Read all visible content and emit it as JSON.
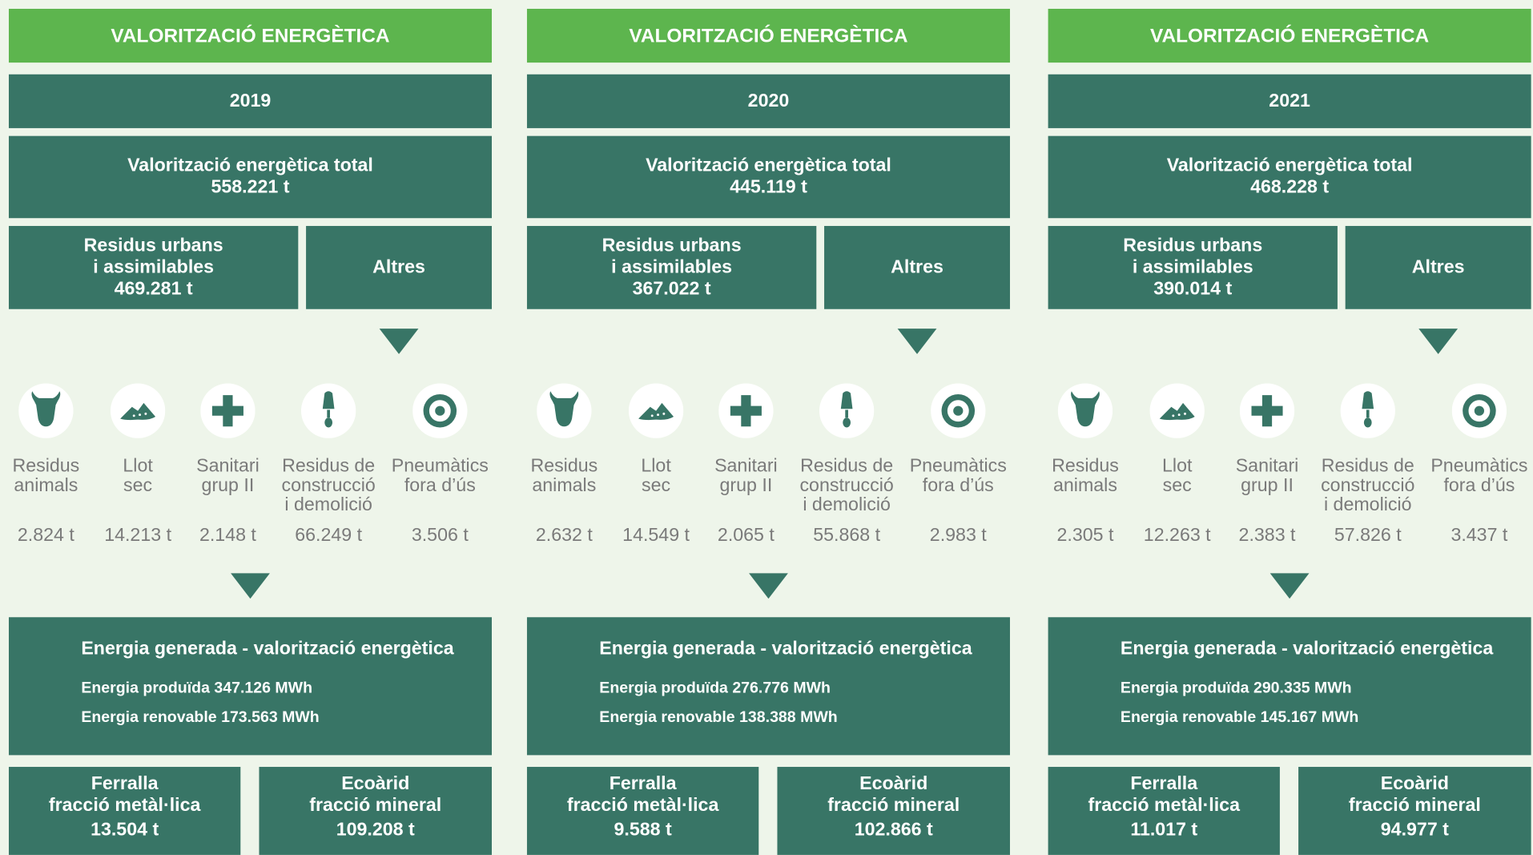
{
  "columns": [
    {
      "header": "VALORITZACIÓ ENERGÈTICA",
      "year": "2019",
      "total_label": "Valorització energètica total",
      "total_value": "558.221 t",
      "urban_label": [
        "Residus urbans",
        "i assimilables"
      ],
      "urban_value": "469.281 t",
      "others": "Altres",
      "items": [
        {
          "label": [
            "Residus",
            "animals"
          ],
          "value": "2.824 t"
        },
        {
          "label": [
            "Llot",
            "sec"
          ],
          "value": "14.213 t"
        },
        {
          "label": [
            "Sanitari",
            "grup II"
          ],
          "value": "2.148 t"
        },
        {
          "label": [
            "Residus de",
            "construcció",
            "i demolició"
          ],
          "value": "66.249 t"
        },
        {
          "label": [
            "Pneumàtics",
            "fora d’ús"
          ],
          "value": "3.506 t"
        }
      ],
      "energy_title": "Energia generada - valorització energètica",
      "energy_produced": "Energia produïda 347.126 MWh",
      "energy_renewable": "Energia renovable 173.563 MWh",
      "ferralla_label": [
        "Ferralla",
        "fracció metàl·lica"
      ],
      "ferralla_value": "13.504 t",
      "ecoarid_label": [
        "Ecoàrid",
        "fracció mineral"
      ],
      "ecoarid_value": "109.208 t"
    },
    {
      "header": "VALORITZACIÓ ENERGÈTICA",
      "year": "2020",
      "total_label": "Valorització energètica total",
      "total_value": "445.119 t",
      "urban_label": [
        "Residus urbans",
        "i assimilables"
      ],
      "urban_value": "367.022 t",
      "others": "Altres",
      "items": [
        {
          "label": [
            "Residus",
            "animals"
          ],
          "value": "2.632 t"
        },
        {
          "label": [
            "Llot",
            "sec"
          ],
          "value": "14.549 t"
        },
        {
          "label": [
            "Sanitari",
            "grup II"
          ],
          "value": "2.065 t"
        },
        {
          "label": [
            "Residus de",
            "construcció",
            "i demolició"
          ],
          "value": "55.868 t"
        },
        {
          "label": [
            "Pneumàtics",
            "fora d’ús"
          ],
          "value": "2.983 t"
        }
      ],
      "energy_title": "Energia generada - valorització energètica",
      "energy_produced": "Energia produïda 276.776 MWh",
      "energy_renewable": "Energia renovable 138.388 MWh",
      "ferralla_label": [
        "Ferralla",
        "fracció metàl·lica"
      ],
      "ferralla_value": "9.588 t",
      "ecoarid_label": [
        "Ecoàrid",
        "fracció mineral"
      ],
      "ecoarid_value": "102.866 t"
    },
    {
      "header": "VALORITZACIÓ ENERGÈTICA",
      "year": "2021",
      "total_label": "Valorització energètica total",
      "total_value": "468.228 t",
      "urban_label": [
        "Residus urbans",
        "i assimilables"
      ],
      "urban_value": "390.014 t",
      "others": "Altres",
      "items": [
        {
          "label": [
            "Residus",
            "animals"
          ],
          "value": "2.305 t"
        },
        {
          "label": [
            "Llot",
            "sec"
          ],
          "value": "12.263 t"
        },
        {
          "label": [
            "Sanitari",
            "grup II"
          ],
          "value": "2.383 t"
        },
        {
          "label": [
            "Residus de",
            "construcció",
            "i demolició"
          ],
          "value": "57.826 t"
        },
        {
          "label": [
            "Pneumàtics",
            "fora d’ús"
          ],
          "value": "3.437 t"
        }
      ],
      "energy_title": "Energia generada - valorització energètica",
      "energy_produced": "Energia produïda 290.335 MWh",
      "energy_renewable": "Energia renovable 145.167 MWh",
      "ferralla_label": [
        "Ferralla",
        "fracció metàl·lica"
      ],
      "ferralla_value": "11.017 t",
      "ecoarid_label": [
        "Ecoàrid",
        "fracció mineral"
      ],
      "ecoarid_value": "94.977 t"
    }
  ]
}
